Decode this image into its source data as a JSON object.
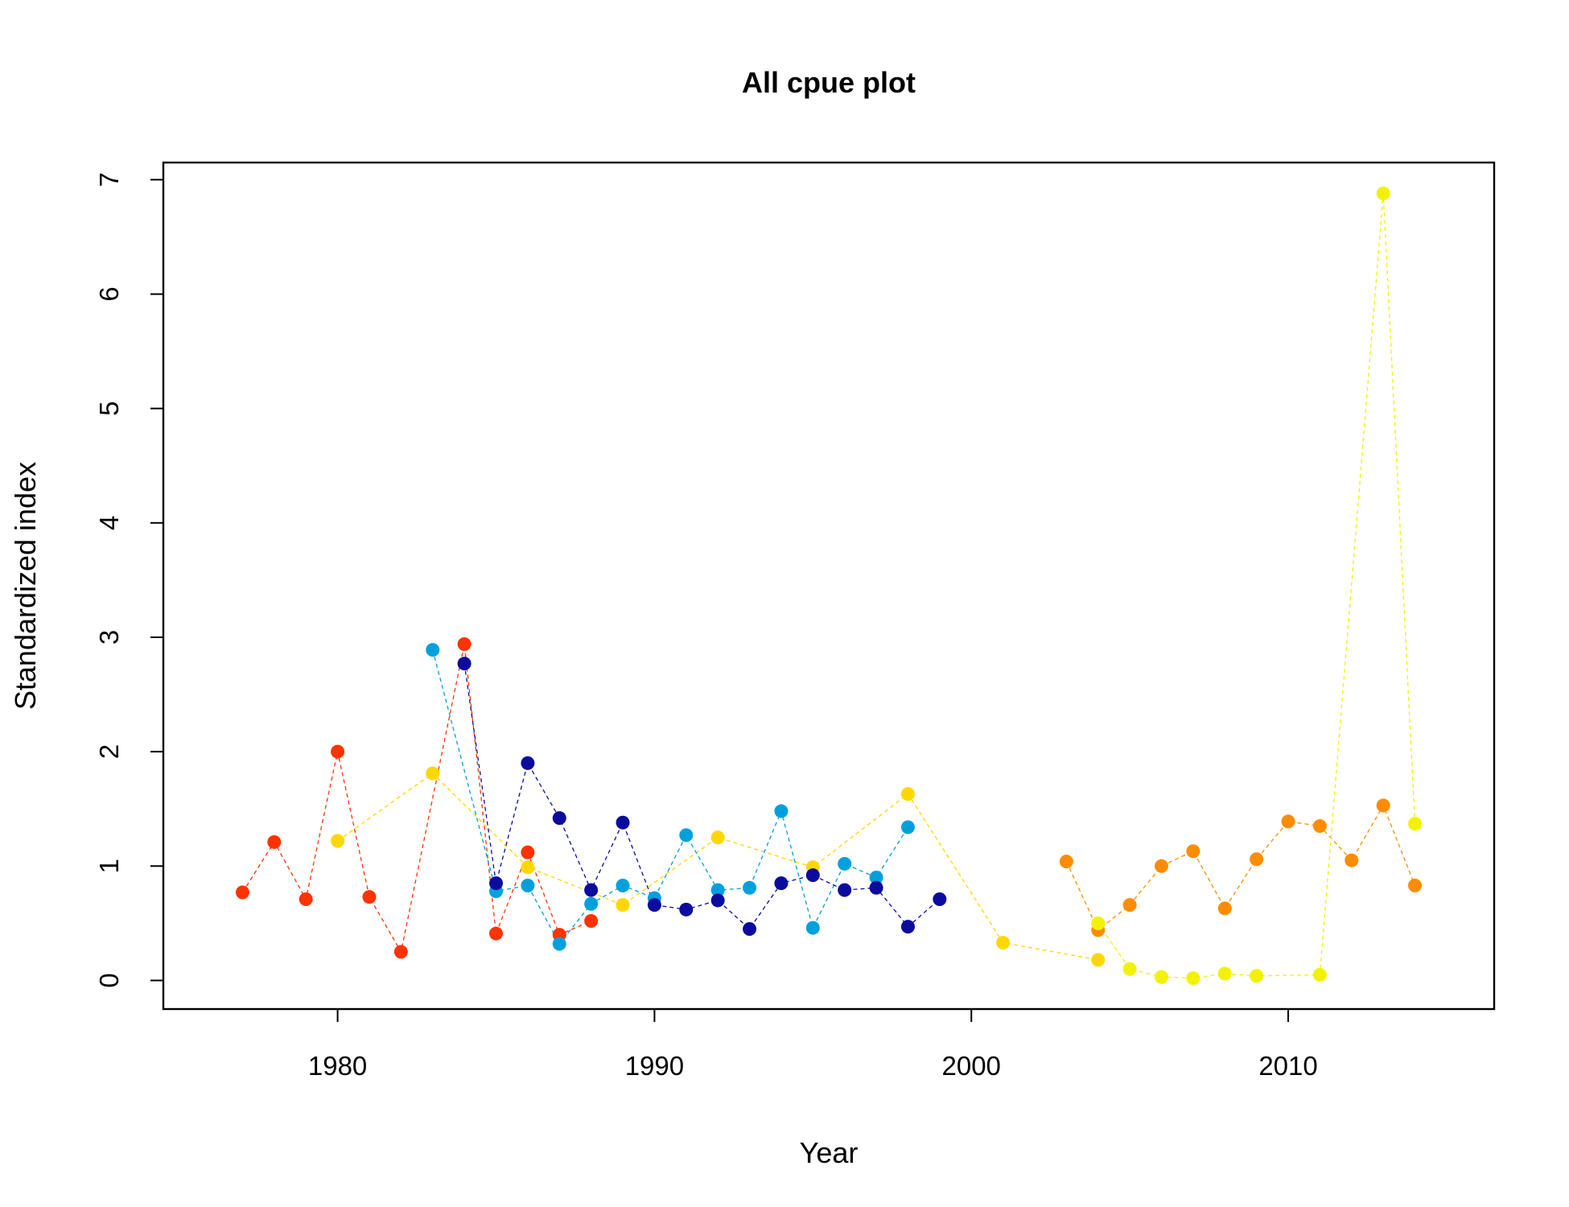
{
  "chart_data": {
    "type": "line",
    "title": "All cpue plot",
    "xlabel": "Year",
    "ylabel": "Standardized index",
    "xlim": [
      1974.5,
      2016.5
    ],
    "ylim": [
      -0.25,
      7.15
    ],
    "x_ticks": [
      1980,
      1990,
      2000,
      2010
    ],
    "y_ticks": [
      0,
      1,
      2,
      3,
      4,
      5,
      6,
      7
    ],
    "grid": false,
    "legend": "none",
    "series": [
      {
        "color": "#FF3300",
        "points": [
          [
            1977,
            0.77
          ],
          [
            1978,
            1.21
          ],
          [
            1979,
            0.71
          ],
          [
            1980,
            2.0
          ],
          [
            1981,
            0.73
          ],
          [
            1982,
            0.25
          ],
          [
            1984,
            2.94
          ],
          [
            1985,
            0.41
          ],
          [
            1986,
            1.12
          ],
          [
            1987,
            0.4
          ],
          [
            1988,
            0.52
          ]
        ]
      },
      {
        "color": "#FFD700",
        "points": [
          [
            1980,
            1.22
          ],
          [
            1983,
            1.81
          ],
          [
            1986,
            0.99
          ],
          [
            1989,
            0.66
          ],
          [
            1992,
            1.25
          ],
          [
            1995,
            0.99
          ],
          [
            1998,
            1.63
          ],
          [
            2001,
            0.33
          ],
          [
            2004,
            0.18
          ]
        ]
      },
      {
        "color": "#00A0DD",
        "points": [
          [
            1983,
            2.89
          ],
          [
            1985,
            0.78
          ],
          [
            1986,
            0.83
          ],
          [
            1987,
            0.32
          ],
          [
            1988,
            0.67
          ],
          [
            1989,
            0.83
          ],
          [
            1990,
            0.72
          ],
          [
            1991,
            1.27
          ],
          [
            1992,
            0.79
          ],
          [
            1993,
            0.81
          ],
          [
            1994,
            1.48
          ],
          [
            1995,
            0.46
          ],
          [
            1996,
            1.02
          ],
          [
            1997,
            0.9
          ],
          [
            1998,
            1.34
          ]
        ]
      },
      {
        "color": "#0B0B9E",
        "points": [
          [
            1984,
            2.77
          ],
          [
            1985,
            0.85
          ],
          [
            1986,
            1.9
          ],
          [
            1987,
            1.42
          ],
          [
            1988,
            0.79
          ],
          [
            1989,
            1.38
          ],
          [
            1990,
            0.66
          ],
          [
            1991,
            0.62
          ],
          [
            1992,
            0.7
          ],
          [
            1993,
            0.45
          ],
          [
            1994,
            0.85
          ],
          [
            1995,
            0.92
          ],
          [
            1996,
            0.79
          ],
          [
            1997,
            0.81
          ],
          [
            1998,
            0.47
          ],
          [
            1999,
            0.71
          ]
        ]
      },
      {
        "color": "#FF8C00",
        "points": [
          [
            2003,
            1.04
          ],
          [
            2004,
            0.44
          ],
          [
            2005,
            0.66
          ],
          [
            2006,
            1.0
          ],
          [
            2007,
            1.13
          ],
          [
            2008,
            0.63
          ],
          [
            2009,
            1.06
          ],
          [
            2010,
            1.39
          ],
          [
            2011,
            1.35
          ],
          [
            2012,
            1.05
          ],
          [
            2013,
            1.53
          ],
          [
            2014,
            0.83
          ]
        ]
      },
      {
        "color": "#F2F200",
        "points": [
          [
            2004,
            0.5
          ],
          [
            2005,
            0.1
          ],
          [
            2006,
            0.03
          ],
          [
            2007,
            0.02
          ],
          [
            2008,
            0.06
          ],
          [
            2009,
            0.04
          ],
          [
            2011,
            0.05
          ],
          [
            2013,
            6.88
          ],
          [
            2014,
            1.37
          ]
        ]
      }
    ]
  }
}
